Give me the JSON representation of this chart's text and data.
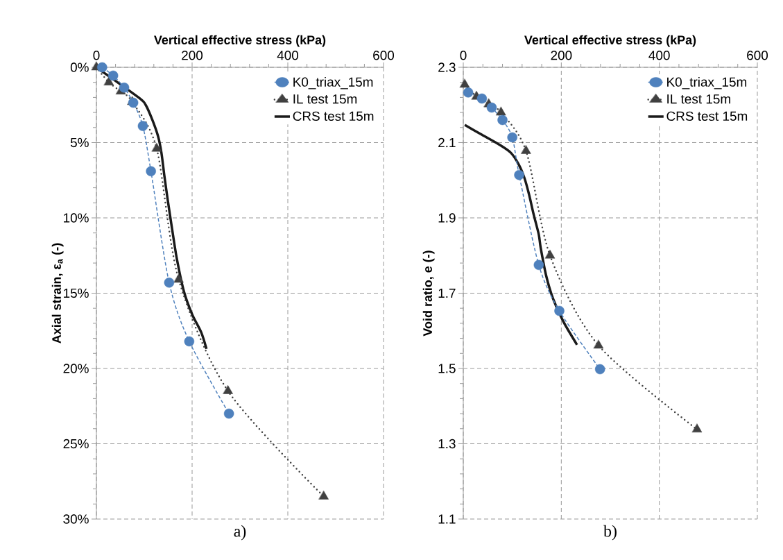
{
  "chart_data": [
    {
      "type": "line",
      "xlabel": "Vertical effective stress (kPa)",
      "ylabel": "Axial strain, ε$_{a}$ (-)",
      "xlim": [
        0,
        600
      ],
      "xticks": [
        0,
        200,
        400,
        600
      ],
      "ylim": [
        30,
        0
      ],
      "yticks": [
        {
          "value": 0,
          "label": "0%"
        },
        {
          "value": 5,
          "label": "5%"
        },
        {
          "value": 10,
          "label": "10%"
        },
        {
          "value": 15,
          "label": "15%"
        },
        {
          "value": 20,
          "label": "20%"
        },
        {
          "value": 25,
          "label": "25%"
        },
        {
          "value": 30,
          "label": "30%"
        }
      ],
      "grid": true,
      "legend": "top right",
      "annotations": [
        "a)"
      ],
      "series": [
        {
          "name": "K0_triax_15m",
          "color": "#4f81bd",
          "marker": "circle",
          "line_style": "dashed",
          "x": [
            12,
            35,
            58,
            77,
            97,
            114,
            152,
            194,
            277
          ],
          "values": [
            0,
            0.55,
            1.35,
            2.35,
            3.9,
            6.9,
            14.3,
            18.2,
            23.0
          ]
        },
        {
          "name": "IL test 15m",
          "color": "#404040",
          "marker": "triangle",
          "line_style": "dotted",
          "x": [
            0,
            26,
            51,
            75,
            126,
            172,
            275,
            475
          ],
          "values": [
            0,
            1.0,
            1.6,
            2.3,
            5.4,
            14.1,
            21.5,
            28.5
          ]
        },
        {
          "name": "CRS test 15m",
          "color": "#1a1a1a",
          "marker": "none",
          "line_style": "solid",
          "x": [
            2,
            88,
            103,
            117,
            129,
            136,
            142,
            149,
            158,
            168,
            183,
            200,
            219,
            230
          ],
          "values": [
            0.05,
            2.0,
            2.5,
            3.5,
            4.6,
            5.7,
            7.2,
            8.8,
            10.7,
            12.7,
            14.9,
            16.4,
            17.6,
            18.7
          ]
        }
      ]
    },
    {
      "type": "line",
      "xlabel": "Vertical effective stress (kPa)",
      "ylabel": "Void ratio, e (-)",
      "xlim": [
        0,
        600
      ],
      "xticks": [
        0,
        200,
        400,
        600
      ],
      "ylim": [
        1.1,
        2.3
      ],
      "yticks": [
        1.1,
        1.3,
        1.5,
        1.7,
        1.9,
        2.1,
        2.3
      ],
      "grid": true,
      "legend": "top right",
      "annotations": [
        "b)"
      ],
      "series": [
        {
          "name": "K0_triax_15m",
          "color": "#4f81bd",
          "marker": "circle",
          "line_style": "dashed",
          "x": [
            10,
            38,
            58,
            80,
            100,
            114,
            154,
            196,
            279
          ],
          "values": [
            2.233,
            2.217,
            2.193,
            2.16,
            2.114,
            2.014,
            1.775,
            1.653,
            1.498
          ]
        },
        {
          "name": "IL test 15m",
          "color": "#404040",
          "marker": "triangle",
          "line_style": "dotted",
          "x": [
            3,
            27,
            52,
            77,
            128,
            177,
            276,
            477
          ],
          "values": [
            2.254,
            2.222,
            2.202,
            2.18,
            2.078,
            1.8,
            1.561,
            1.338
          ]
        },
        {
          "name": "CRS test 15m",
          "color": "#1a1a1a",
          "marker": "none",
          "line_style": "solid",
          "x": [
            3,
            35,
            73,
            97,
            113,
            125,
            134,
            144,
            154,
            158,
            169,
            183,
            204,
            232
          ],
          "values": [
            2.147,
            2.123,
            2.095,
            2.073,
            2.042,
            2.005,
            1.963,
            1.907,
            1.856,
            1.82,
            1.747,
            1.686,
            1.625,
            1.563
          ]
        }
      ]
    }
  ]
}
